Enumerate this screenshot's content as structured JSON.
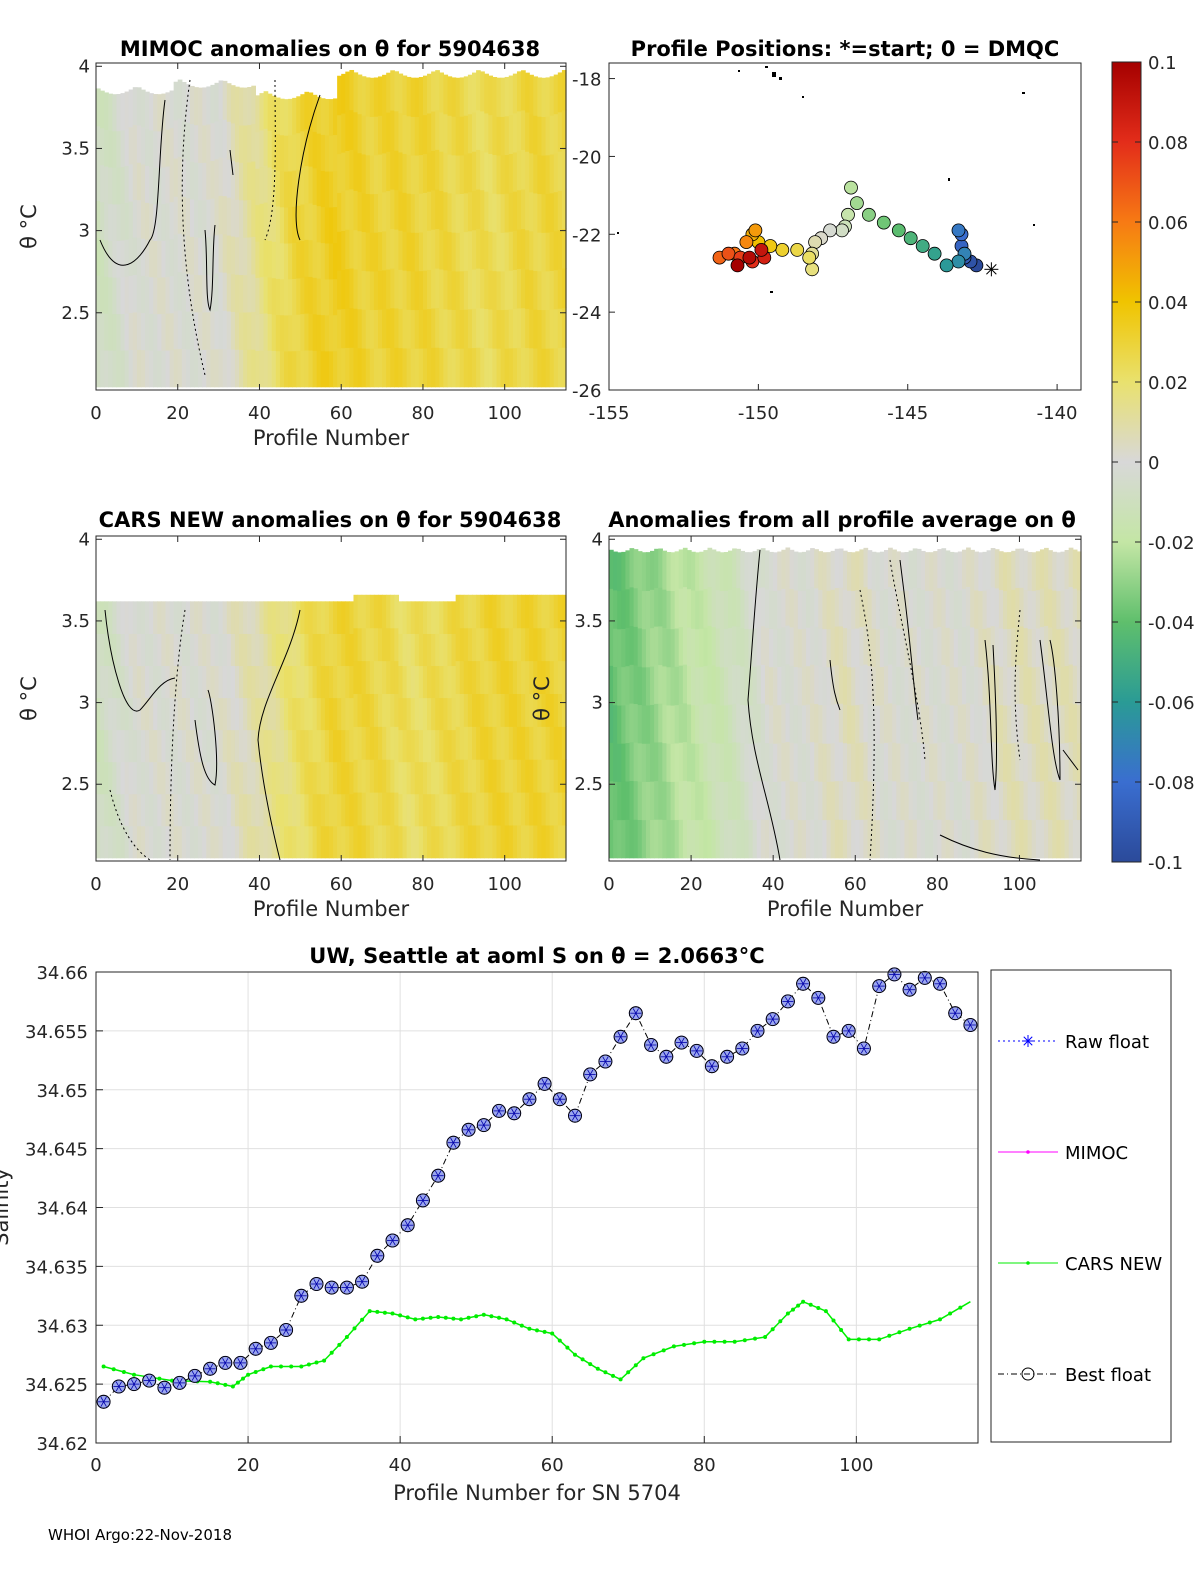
{
  "footer": "WHOI Argo:22-Nov-2018",
  "colors": {
    "raw": "#0000ff",
    "mimoc": "#ff00ff",
    "cars": "#00ee00",
    "best": "#000000",
    "marker": "#9aa6ee"
  },
  "chart_data": [
    {
      "id": "mimoc",
      "type": "heatmap",
      "title": "MIMOC anomalies on θ  for 5904638",
      "xlabel": "Profile Number",
      "ylabel": "θ °C",
      "xlim": [
        0,
        115
      ],
      "ylim": [
        2.03,
        4.02
      ],
      "xticks": [
        "0",
        "20",
        "40",
        "60",
        "80",
        "100"
      ],
      "yticks": [
        "2.5",
        "3",
        "3.5",
        "4"
      ],
      "anomaly_by_profile_band": [
        -0.01,
        0.0,
        0.0,
        0.0,
        0.013,
        0.028,
        0.034,
        0.03,
        0.03,
        0.027,
        0.024,
        0.028
      ]
    },
    {
      "id": "positions",
      "type": "scatter",
      "title": "Profile Positions: *=start; 0 = DMQC",
      "xlim": [
        -155,
        -139.2
      ],
      "ylim": [
        -26,
        -17.6
      ],
      "xticks": [
        "-155",
        "-150",
        "-145",
        "-140"
      ],
      "yticks": [
        "-18",
        "-20",
        "-22",
        "-24",
        "-26"
      ],
      "track_lon": [
        -142.7,
        -142.9,
        -143.1,
        -143.2,
        -143.2,
        -143.3,
        -143.1,
        -143.3,
        -143.7,
        -144.1,
        -144.5,
        -144.9,
        -145.3,
        -145.8,
        -146.3,
        -146.7,
        -146.9,
        -147.0,
        -147.1,
        -147.2,
        -147.6,
        -147.9,
        -148.1,
        -148.2,
        -148.2,
        -148.3,
        -148.7,
        -149.2,
        -149.6,
        -150.0,
        -150.2,
        -150.1,
        -150.4,
        -150.8,
        -151.3,
        -151.0,
        -150.6,
        -150.2,
        -149.8,
        -149.9,
        -150.3,
        -150.7
      ],
      "track_lat": [
        -22.8,
        -22.7,
        -22.6,
        -22.3,
        -22.0,
        -21.9,
        -22.5,
        -22.7,
        -22.8,
        -22.5,
        -22.3,
        -22.1,
        -21.9,
        -21.7,
        -21.5,
        -21.2,
        -20.8,
        -21.5,
        -21.8,
        -21.9,
        -21.9,
        -22.1,
        -22.2,
        -22.5,
        -22.9,
        -22.6,
        -22.4,
        -22.4,
        -22.3,
        -22.2,
        -22.0,
        -21.9,
        -22.2,
        -22.5,
        -22.6,
        -22.5,
        -22.6,
        -22.7,
        -22.6,
        -22.4,
        -22.6,
        -22.8
      ],
      "start": [
        -142.2,
        -22.9
      ]
    },
    {
      "id": "colorbar",
      "type": "colorbar",
      "ticks": [
        "0.1",
        "0.08",
        "0.06",
        "0.04",
        "0.02",
        "0",
        "-0.02",
        "-0.04",
        "-0.06",
        "-0.08",
        "-0.1"
      ]
    },
    {
      "id": "cars",
      "type": "heatmap",
      "title": "CARS NEW anomalies on θ for 5904638",
      "xlabel": "Profile Number",
      "ylabel": "θ °C",
      "xlim": [
        0,
        115
      ],
      "ylim": [
        2.03,
        4.02
      ],
      "xticks": [
        "0",
        "20",
        "40",
        "60",
        "80",
        "100"
      ],
      "yticks": [
        "2.5",
        "3",
        "3.5",
        "4"
      ],
      "anomaly_by_profile_band": [
        -0.01,
        0.0,
        0.0,
        0.0,
        0.008,
        0.02,
        0.03,
        0.028,
        0.022,
        0.026,
        0.03,
        0.03
      ]
    },
    {
      "id": "allavg",
      "type": "heatmap",
      "title": "Anomalies from all profile average on θ",
      "xlabel": "Profile Number",
      "ylabel": "θ °C",
      "xlim": [
        0,
        115
      ],
      "ylim": [
        2.03,
        4.02
      ],
      "xticks": [
        "0",
        "20",
        "40",
        "60",
        "80",
        "100"
      ],
      "yticks": [
        "2.5",
        "3",
        "3.5",
        "4"
      ],
      "anomaly_by_profile_band": [
        -0.04,
        -0.03,
        -0.02,
        -0.012,
        0.0,
        0.0,
        0.005,
        0.0,
        0.0,
        0.0,
        0.005,
        0.005
      ]
    },
    {
      "id": "salinity",
      "type": "line",
      "title": "UW, Seattle at aoml S on θ = 2.0663°C",
      "xlabel": "Profile Number for SN 5704",
      "ylabel": "Salinity",
      "xlim": [
        0,
        116
      ],
      "ylim": [
        34.62,
        34.66
      ],
      "xticks": [
        "0",
        "20",
        "40",
        "60",
        "80",
        "100"
      ],
      "yticks": [
        "34.62",
        "34.625",
        "34.63",
        "34.635",
        "34.64",
        "34.645",
        "34.65",
        "34.655",
        "34.66"
      ],
      "series": [
        {
          "name": "Raw float",
          "x": [
            1,
            3,
            5,
            7,
            9,
            11,
            13,
            15,
            17,
            19,
            21,
            23,
            25,
            27,
            29,
            31,
            33,
            35,
            37,
            39,
            41,
            43,
            45,
            47,
            49,
            51,
            53,
            55,
            57,
            59,
            61,
            63,
            65,
            67,
            69,
            71,
            73,
            75,
            77,
            79,
            81,
            83,
            85,
            87,
            89,
            91,
            93,
            95,
            97,
            99,
            101,
            103,
            105,
            107,
            109,
            111,
            113,
            115
          ],
          "y": [
            34.6235,
            34.6248,
            34.625,
            34.6253,
            34.6247,
            34.6251,
            34.6257,
            34.6263,
            34.6268,
            34.6268,
            34.628,
            34.6285,
            34.6296,
            34.6325,
            34.6335,
            34.6332,
            34.6332,
            34.6337,
            34.6359,
            34.6372,
            34.6385,
            34.6406,
            34.6427,
            34.6455,
            34.6466,
            34.647,
            34.6482,
            34.648,
            34.6492,
            34.6505,
            34.6492,
            34.6478,
            34.6513,
            34.6524,
            34.6545,
            34.6565,
            34.6538,
            34.6528,
            34.654,
            34.6533,
            34.652,
            34.6528,
            34.6535,
            34.655,
            34.656,
            34.6575,
            34.659,
            34.6578,
            34.6545,
            34.655,
            34.6535,
            34.6588,
            34.6598,
            34.6585,
            34.6595,
            34.659,
            34.6565,
            34.6555
          ]
        },
        {
          "name": "MIMOC",
          "x": [],
          "y": []
        },
        {
          "name": "CARS NEW",
          "x": [
            1,
            5,
            10,
            15,
            18,
            20,
            23,
            27,
            30,
            33,
            36,
            39,
            42,
            45,
            48,
            51,
            54,
            57,
            60,
            63,
            66,
            69,
            72,
            76,
            80,
            84,
            88,
            91,
            93,
            96,
            99,
            103,
            107,
            111,
            115
          ],
          "y": [
            34.6265,
            34.6258,
            34.6253,
            34.6252,
            34.6248,
            34.6258,
            34.6265,
            34.6265,
            34.627,
            34.629,
            34.6312,
            34.631,
            34.6305,
            34.6307,
            34.6305,
            34.6309,
            34.6305,
            34.6297,
            34.6293,
            34.6275,
            34.6263,
            34.6254,
            34.6272,
            34.6282,
            34.6286,
            34.6286,
            34.629,
            34.631,
            34.632,
            34.6312,
            34.6288,
            34.6288,
            34.6297,
            34.6305,
            34.632
          ]
        },
        {
          "name": "Best float",
          "x": [],
          "y": []
        }
      ]
    }
  ]
}
